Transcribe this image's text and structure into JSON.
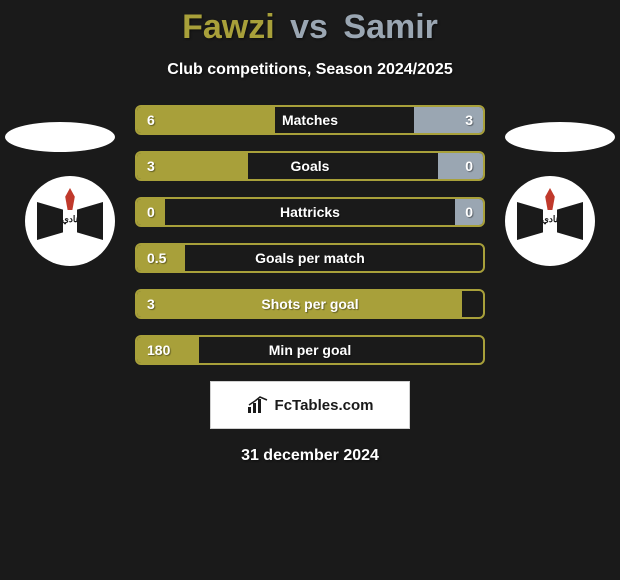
{
  "title": {
    "player1": "Fawzi",
    "vs": "vs",
    "player2": "Samir",
    "color_p1": "#a8a03a",
    "color_vs": "#9aa6b2",
    "color_p2": "#9aa6b2"
  },
  "subtitle": "Club competitions, Season 2024/2025",
  "colors": {
    "background": "#1a1a1a",
    "bar_fill_p1": "#a8a03a",
    "bar_fill_p2": "#9aa6b2",
    "bar_border": "#a8a03a",
    "text": "#ffffff"
  },
  "bars": [
    {
      "label": "Matches",
      "left_val": "6",
      "right_val": "3",
      "left_pct": 40,
      "right_pct": 20
    },
    {
      "label": "Goals",
      "left_val": "3",
      "right_val": "0",
      "left_pct": 32,
      "right_pct": 13
    },
    {
      "label": "Hattricks",
      "left_val": "0",
      "right_val": "0",
      "left_pct": 8,
      "right_pct": 8
    },
    {
      "label": "Goals per match",
      "left_val": "0.5",
      "right_val": "",
      "left_pct": 14,
      "right_pct": 0
    },
    {
      "label": "Shots per goal",
      "left_val": "3",
      "right_val": "",
      "left_pct": 94,
      "right_pct": 0
    },
    {
      "label": "Min per goal",
      "left_val": "180",
      "right_val": "",
      "left_pct": 18,
      "right_pct": 0
    }
  ],
  "footer": {
    "site": "FcTables.com"
  },
  "date": "31 december 2024",
  "badge_text": "نادي"
}
